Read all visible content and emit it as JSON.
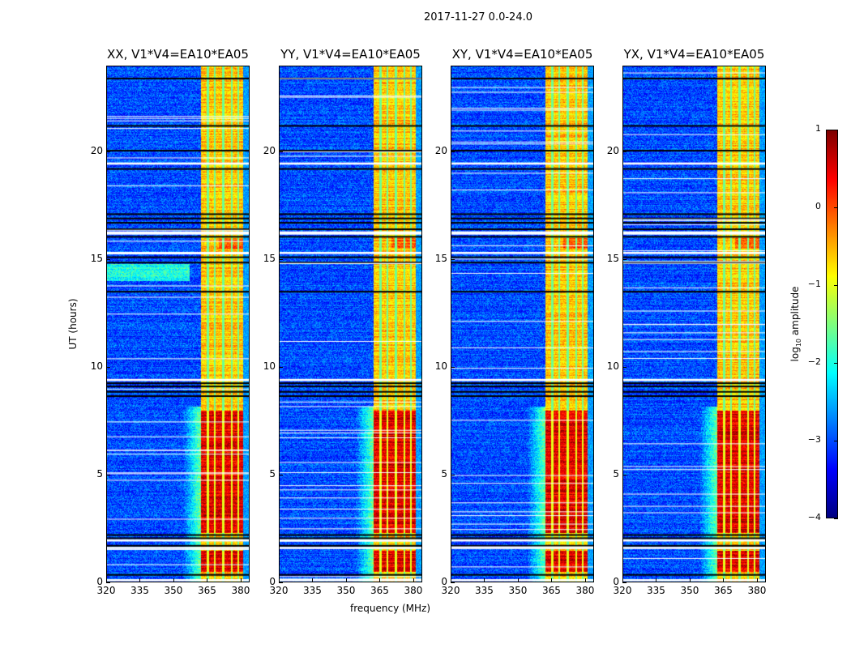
{
  "chart_data": {
    "type": "heatmap",
    "suptitle": "2017-11-27 0.0-24.0",
    "panels": [
      {
        "title": "XX, V1*V4=EA10*EA05",
        "pol": "XX"
      },
      {
        "title": "YY, V1*V4=EA10*EA05",
        "pol": "YY"
      },
      {
        "title": "XY, V1*V4=EA10*EA05",
        "pol": "XY"
      },
      {
        "title": "YX, V1*V4=EA10*EA05",
        "pol": "YX"
      }
    ],
    "xlabel": "frequency (MHz)",
    "ylabel": "UT (hours)",
    "xlim": [
      320,
      384
    ],
    "ylim": [
      0,
      24
    ],
    "xticks": [
      "320",
      "335",
      "350",
      "365",
      "380"
    ],
    "xtick_values": [
      320,
      335,
      350,
      365,
      380
    ],
    "yticks": [
      "0",
      "5",
      "10",
      "15",
      "20"
    ],
    "ytick_values": [
      0,
      5,
      10,
      15,
      20
    ],
    "colorbar": {
      "label": "log10 amplitude",
      "label_main": "log",
      "label_sub": "10",
      "label_rest": " amplitude",
      "range": [
        -4,
        1
      ],
      "ticks": [
        "1",
        "0",
        "−1",
        "−2",
        "−3",
        "−4"
      ],
      "tick_values": [
        1,
        0,
        -1,
        -2,
        -3,
        -4
      ],
      "colormap": "jet"
    },
    "features": {
      "background_level": -3,
      "strong_band_mhz": [
        362,
        381
      ],
      "band_level_quiet": -0.6,
      "band_level_strong": 0.5,
      "strong_intervals_hours": [
        [
          0.5,
          1.5
        ],
        [
          2.3,
          8.0
        ]
      ],
      "band_channel_gaps_mhz": [
        365.2,
        368.3,
        372.0,
        375.8,
        378.8
      ],
      "flagged_black_hours": [
        0.35,
        1.7,
        2.05,
        2.2,
        8.65,
        8.85,
        9.1,
        9.25,
        13.5,
        14.85,
        15.1,
        16.05,
        16.4,
        16.7,
        16.9,
        17.1,
        19.2,
        20.05,
        21.2,
        23.4
      ],
      "missing_white_hours": [
        [
          0.05,
          0.15
        ],
        [
          1.55,
          1.65
        ],
        [
          1.9,
          2.0
        ],
        [
          9.35,
          9.45
        ],
        [
          15.25,
          15.35
        ],
        [
          16.15,
          16.3
        ],
        [
          19.4,
          19.5
        ]
      ]
    }
  }
}
